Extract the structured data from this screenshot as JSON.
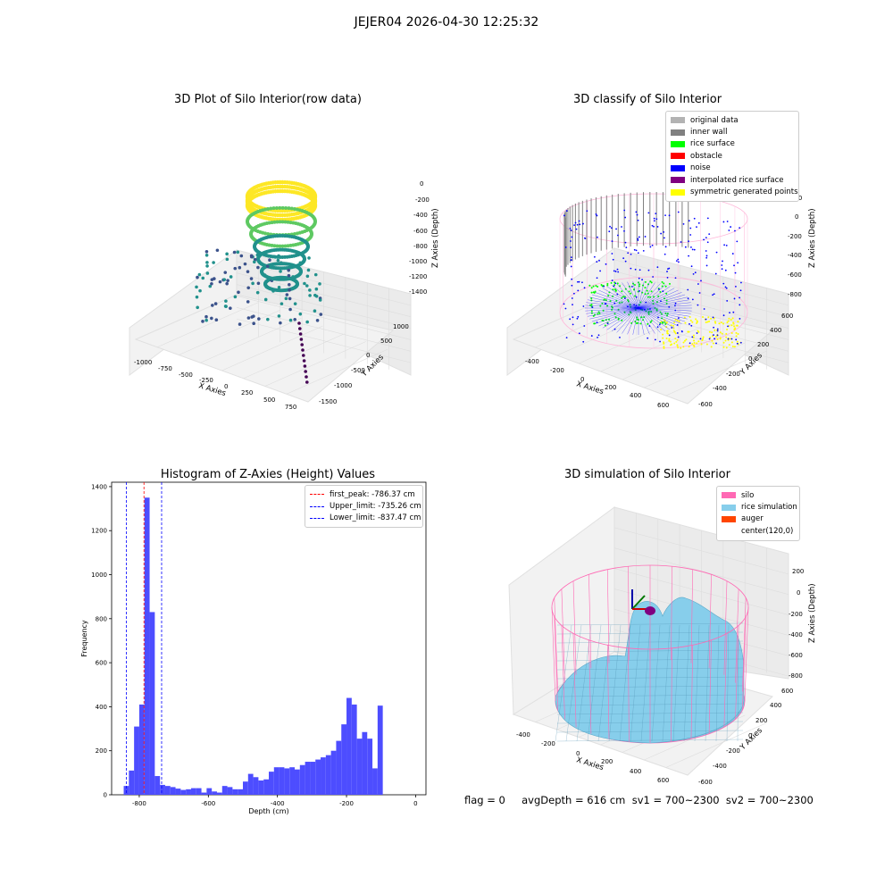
{
  "figure": {
    "suptitle": "JEJER04 2026-04-30 12:25:32",
    "footer": "flag = 0     avgDepth = 616 cm  sv1 = 700~2300  sv2 = 700~2300"
  },
  "panels": {
    "raw": {
      "title": "3D Plot of Silo Interior(row data)",
      "xlabel": "X Axies",
      "ylabel": "Y Axies",
      "zlabel": "Z Axies (Depth)",
      "xticks": [
        "-1000",
        "-750",
        "-500",
        "-250",
        "0",
        "250",
        "500",
        "750"
      ],
      "yticks": [
        "1000",
        "500",
        "0",
        "-500",
        "-1000",
        "-1500"
      ],
      "zticks": [
        "0",
        "-200",
        "-400",
        "-600",
        "-800",
        "-1000",
        "-1200",
        "-1400"
      ]
    },
    "classify": {
      "title": "3D classify of Silo Interior",
      "xlabel": "X Axies",
      "ylabel": "Y Axies",
      "zlabel": "Z Axies (Depth)",
      "xticks": [
        "-400",
        "-200",
        "0",
        "200",
        "400",
        "600"
      ],
      "yticks": [
        "600",
        "400",
        "200",
        "0",
        "-200",
        "-400",
        "-600"
      ],
      "zticks": [
        "200",
        "0",
        "-200",
        "-400",
        "-600",
        "-800"
      ],
      "legend": [
        {
          "label": "original data",
          "color": "#b3b3b3"
        },
        {
          "label": "inner wall",
          "color": "#808080"
        },
        {
          "label": "rice surface",
          "color": "#00ff00"
        },
        {
          "label": "obstacle",
          "color": "#ff0000"
        },
        {
          "label": "noise",
          "color": "#0000ff"
        },
        {
          "label": "interpolated rice surface",
          "color": "#800080"
        },
        {
          "label": "symmetric generated points",
          "color": "#ffff00"
        }
      ]
    },
    "simulation": {
      "title": "3D simulation of Silo Interior",
      "xlabel": "X Axies",
      "ylabel": "Y Axies",
      "zlabel": "Z Axies (Depth)",
      "xticks": [
        "-400",
        "-200",
        "0",
        "200",
        "400",
        "600"
      ],
      "yticks": [
        "600",
        "400",
        "200",
        "0",
        "-200",
        "-400",
        "-600"
      ],
      "zticks": [
        "200",
        "0",
        "-200",
        "-400",
        "-600",
        "-800"
      ],
      "legend": [
        {
          "label": "silo",
          "color": "#ff69b4"
        },
        {
          "label": "rice simulation",
          "color": "#87ceeb"
        },
        {
          "label": "auger",
          "color": "#ff4500"
        },
        {
          "label": "center(120,0)",
          "color": "#ffffff"
        }
      ]
    }
  },
  "chart_data": [
    {
      "type": "scatter",
      "title": "3D Plot of Silo Interior(row data)",
      "xlabel": "X Axies",
      "ylabel": "Y Axies",
      "zlabel": "Z Axies (Depth)",
      "xlim": [
        -1100,
        800
      ],
      "ylim": [
        -1600,
        1100
      ],
      "zlim": [
        -1500,
        50
      ]
    },
    {
      "type": "scatter",
      "title": "3D classify of Silo Interior",
      "xlabel": "X Axies",
      "ylabel": "Y Axies",
      "zlabel": "Z Axies (Depth)",
      "xlim": [
        -450,
        650
      ],
      "ylim": [
        -650,
        650
      ],
      "zlim": [
        -900,
        250
      ],
      "series": [
        {
          "name": "original data"
        },
        {
          "name": "inner wall"
        },
        {
          "name": "rice surface"
        },
        {
          "name": "obstacle"
        },
        {
          "name": "noise"
        },
        {
          "name": "interpolated rice surface"
        },
        {
          "name": "symmetric generated points"
        }
      ]
    },
    {
      "type": "bar",
      "title": "Histogram of Z-Axies (Height) Values",
      "xlabel": "Depth (cm)",
      "ylabel": "Frequency",
      "xlim": [
        -880,
        30
      ],
      "ylim": [
        0,
        1420
      ],
      "xticks": [
        -800,
        -600,
        -400,
        -200,
        0
      ],
      "yticks": [
        0,
        200,
        400,
        600,
        800,
        1000,
        1200,
        1400
      ],
      "bin_start": -845,
      "bin_width": 15,
      "values": [
        40,
        110,
        310,
        410,
        1350,
        830,
        85,
        45,
        40,
        35,
        28,
        22,
        25,
        30,
        30,
        10,
        30,
        15,
        10,
        40,
        35,
        25,
        25,
        60,
        95,
        80,
        65,
        70,
        105,
        125,
        125,
        120,
        125,
        115,
        135,
        150,
        150,
        160,
        170,
        180,
        200,
        245,
        320,
        440,
        410,
        255,
        285,
        255,
        120,
        405
      ],
      "lines": [
        {
          "name": "first_peak: -786.37 cm",
          "x": -786.37,
          "color": "#ff0000"
        },
        {
          "name": "Upper_limit: -735.26 cm",
          "x": -735.26,
          "color": "#0000ff"
        },
        {
          "name": "Lower_limit: -837.47 cm",
          "x": -837.47,
          "color": "#0000ff"
        }
      ],
      "bar_color": "#4d4dff"
    },
    {
      "type": "surface",
      "title": "3D simulation of Silo Interior",
      "xlabel": "X Axies",
      "ylabel": "Y Axies",
      "zlabel": "Z Axies (Depth)",
      "xlim": [
        -450,
        650
      ],
      "ylim": [
        -650,
        650
      ],
      "zlim": [
        -900,
        250
      ],
      "series": [
        {
          "name": "silo"
        },
        {
          "name": "rice simulation"
        },
        {
          "name": "auger"
        },
        {
          "name": "center(120,0)"
        }
      ]
    }
  ]
}
